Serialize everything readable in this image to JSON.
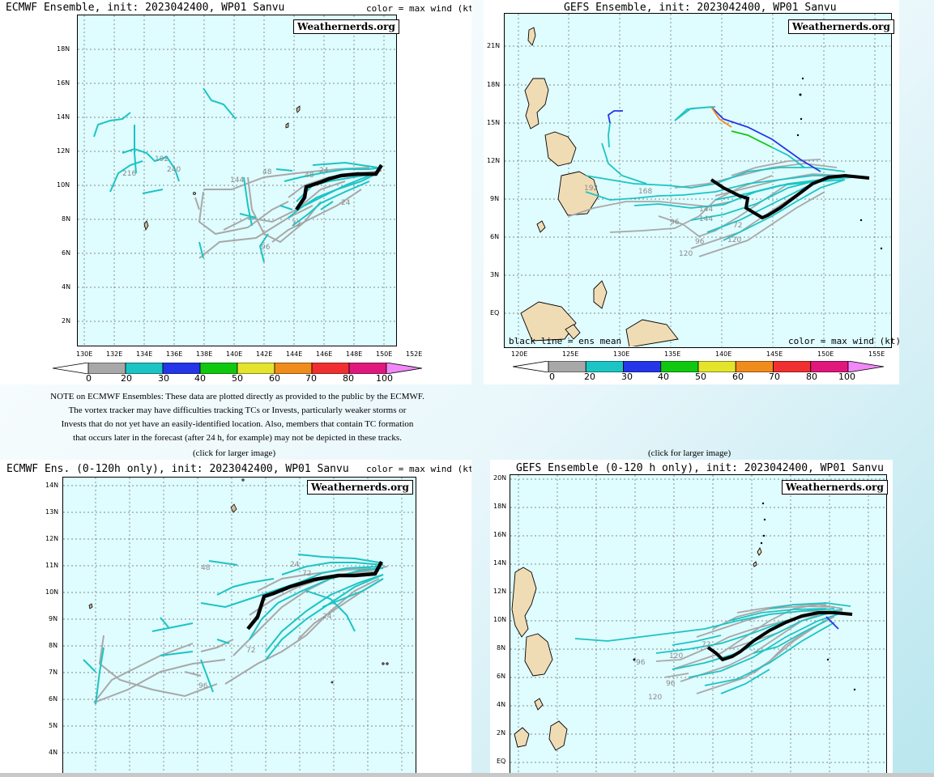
{
  "panels": {
    "ecmwf_full": {
      "title": "ECMWF Ensemble, init: 2023042400, WP01 Sanvu",
      "legend": "color = max wind (kt)",
      "watermark": "Weathernerds.org",
      "y_labels": [
        "18N",
        "16N",
        "14N",
        "12N",
        "10N",
        "8N",
        "6N",
        "4N",
        "2N"
      ],
      "x_labels": [
        "130E",
        "132E",
        "134E",
        "136E",
        "138E",
        "140E",
        "142E",
        "144E",
        "146E",
        "148E",
        "150E",
        "152E"
      ],
      "track_labels": [
        "192",
        "216",
        "240",
        "144",
        "48",
        "48",
        "24",
        "24",
        "72",
        "96"
      ]
    },
    "gefs_full": {
      "title": "GEFS Ensemble, init: 2023042400, WP01 Sanvu",
      "legend": "color = max wind (kt)",
      "mean_note": "black line = ens mean",
      "watermark": "Weathernerds.org",
      "y_labels": [
        "21N",
        "18N",
        "15N",
        "12N",
        "9N",
        "6N",
        "3N",
        "EQ"
      ],
      "x_labels": [
        "120E",
        "125E",
        "130E",
        "135E",
        "140E",
        "145E",
        "150E",
        "155E"
      ],
      "track_labels": [
        "192",
        "168",
        "144",
        "96",
        "144",
        "72",
        "96",
        "120",
        "120"
      ]
    },
    "ecmwf_120": {
      "title": "ECMWF Ens. (0-120h only), init: 2023042400, WP01 Sanvu",
      "legend": "color = max wind (kt)",
      "watermark": "Weathernerds.org",
      "y_labels": [
        "14N",
        "13N",
        "12N",
        "11N",
        "10N",
        "9N",
        "8N",
        "7N",
        "6N",
        "5N",
        "4N"
      ],
      "track_labels": [
        "48",
        "24",
        "72",
        "24",
        "72",
        "96"
      ]
    },
    "gefs_120": {
      "title": "GEFS Ensemble (0-120 h only), init: 2023042400, WP01 Sanvu",
      "watermark": "Weathernerds.org",
      "y_labels": [
        "20N",
        "18N",
        "16N",
        "14N",
        "12N",
        "10N",
        "8N",
        "6N",
        "4N",
        "2N",
        "EQ"
      ],
      "track_labels": [
        "72",
        "120",
        "96",
        "96",
        "120"
      ]
    }
  },
  "colorbar": {
    "labels": [
      "0",
      "20",
      "30",
      "40",
      "50",
      "60",
      "70",
      "80",
      "100"
    ],
    "colors": [
      "#a8a8a8",
      "#1cc4c4",
      "#2436e8",
      "#10c810",
      "#e4e42c",
      "#f08c1c",
      "#f03030",
      "#e0187c"
    ],
    "end_color": "#f088f8"
  },
  "note": {
    "line1": "NOTE on ECMWF Ensembles: These data are plotted directly as provided to the public by the ECMWF.",
    "line2": "The vortex tracker may have difficulties tracking TCs or Invests, particularly weaker storms or",
    "line3": "Invests that do not yet have an easily-identified location. Also, members that contain TC formation",
    "line4": "that occurs later in the forecast (after 24 h, for example) may not be depicted in these tracks."
  },
  "click_label": "(click for larger image)",
  "track_colors": {
    "gray": "#a8a8a8",
    "cyan": "#1cc4c4",
    "mean": "#000000",
    "land": "#f0dcb4"
  }
}
